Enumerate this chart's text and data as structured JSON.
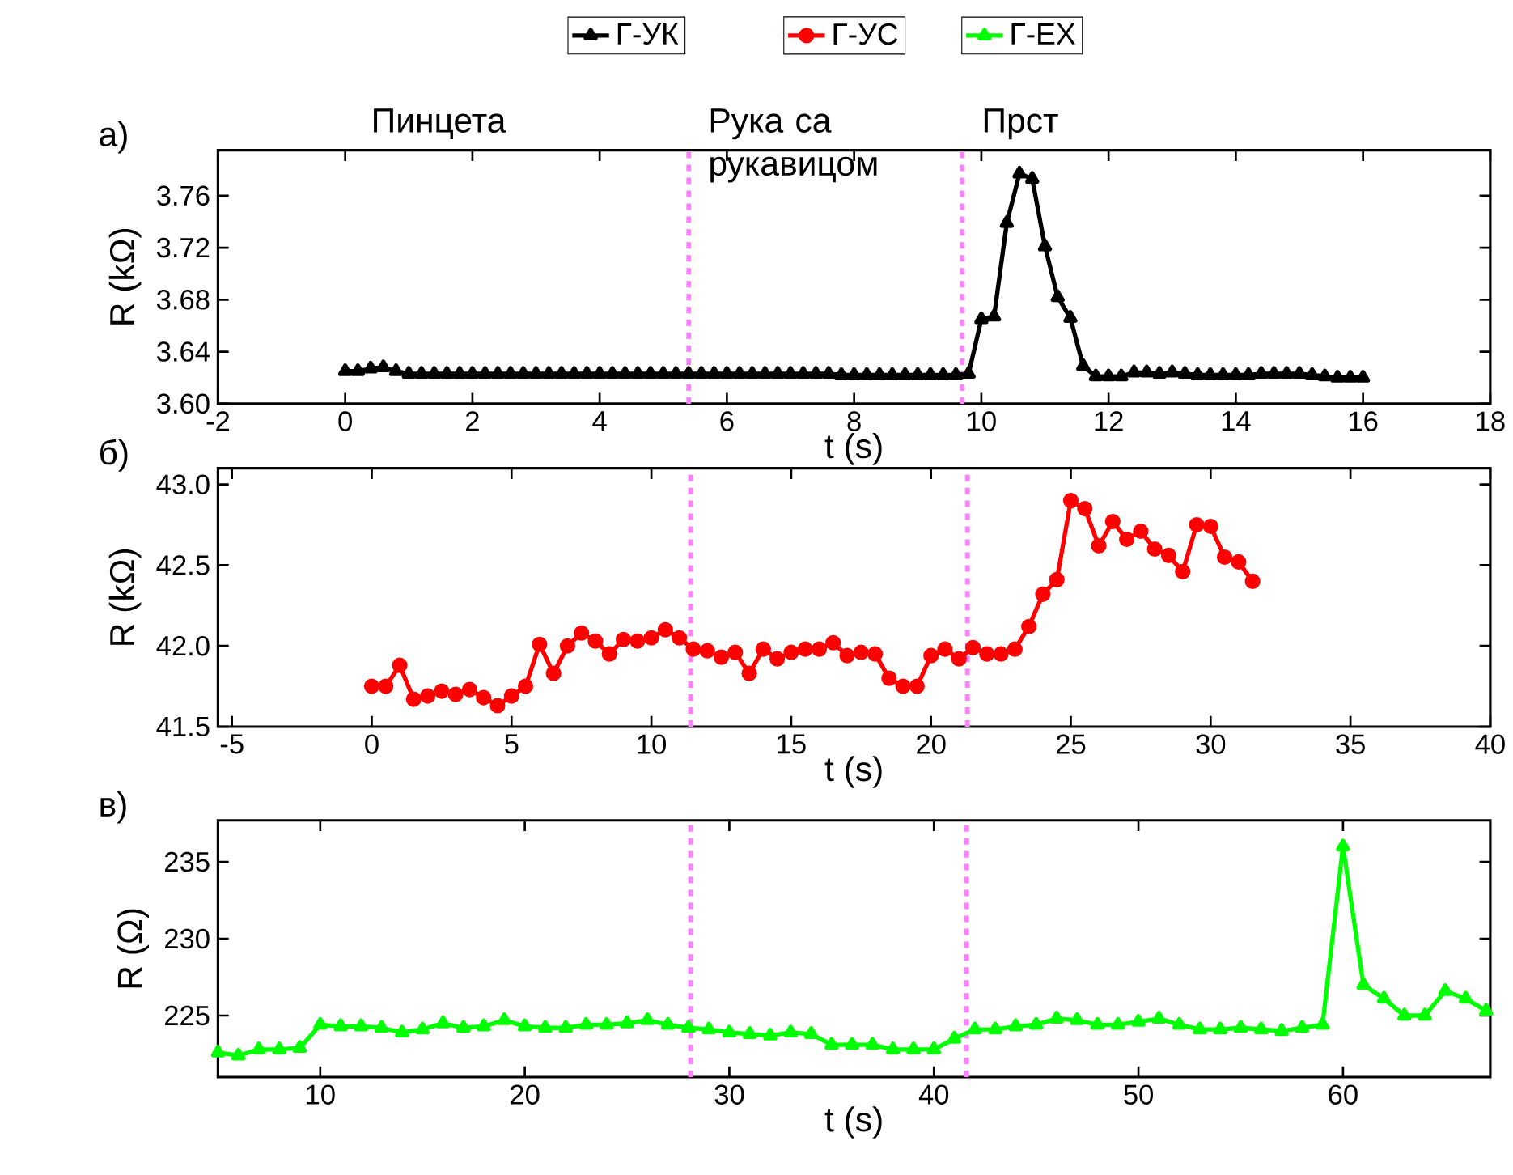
{
  "chart_data": [
    {
      "type": "line",
      "title": "а)",
      "xlabel": "t (s)",
      "ylabel": "R (kΩ)",
      "legend": "top",
      "marker": "triangle",
      "annotations": [
        "Пинцета",
        "Рука са рукавицом",
        "Прст"
      ],
      "xlim": [
        -2,
        18
      ],
      "xticks": [
        -2,
        0,
        2,
        4,
        6,
        8,
        10,
        12,
        14,
        16,
        18
      ],
      "ylim": [
        3.6,
        3.795
      ],
      "yticks": [
        {
          "value": 3.6,
          "label": "3.60"
        },
        {
          "value": 3.64,
          "label": "3.64"
        },
        {
          "value": 3.68,
          "label": "3.68"
        },
        {
          "value": 3.72,
          "label": "3.72"
        },
        {
          "value": 3.76,
          "label": "3.76"
        }
      ],
      "ref_lines": [
        {
          "axis": "x",
          "value": 5.4,
          "color": "#ff80ff",
          "line_style": "dotted"
        },
        {
          "axis": "x",
          "value": 9.7,
          "color": "#ff80ff",
          "line_style": "dotted"
        }
      ],
      "series": [
        {
          "name": "Г-УК",
          "color": "#000000",
          "x": [
            0,
            0.2,
            0.4,
            0.6,
            0.8,
            1.0,
            1.2,
            1.4,
            1.6,
            1.8,
            2.0,
            2.2,
            2.4,
            2.6,
            2.8,
            3.0,
            3.2,
            3.4,
            3.6,
            3.8,
            4.0,
            4.2,
            4.4,
            4.6,
            4.8,
            5.0,
            5.2,
            5.4,
            5.6,
            5.8,
            6.0,
            6.2,
            6.4,
            6.6,
            6.8,
            7.0,
            7.2,
            7.4,
            7.6,
            7.8,
            8.0,
            8.2,
            8.4,
            8.6,
            8.8,
            9.0,
            9.2,
            9.4,
            9.6,
            9.8,
            10.0,
            10.2,
            10.4,
            10.6,
            10.8,
            11.0,
            11.2,
            11.4,
            11.6,
            11.8,
            12.0,
            12.2,
            12.4,
            12.6,
            12.8,
            13.0,
            13.2,
            13.4,
            13.6,
            13.8,
            14.0,
            14.2,
            14.4,
            14.6,
            14.8,
            15.0,
            15.2,
            15.4,
            15.6,
            15.8,
            16.0
          ],
          "values": [
            3.625,
            3.625,
            3.627,
            3.628,
            3.625,
            3.623,
            3.623,
            3.623,
            3.623,
            3.623,
            3.623,
            3.623,
            3.623,
            3.623,
            3.623,
            3.623,
            3.623,
            3.623,
            3.623,
            3.623,
            3.623,
            3.623,
            3.623,
            3.623,
            3.623,
            3.623,
            3.623,
            3.623,
            3.623,
            3.623,
            3.623,
            3.623,
            3.623,
            3.623,
            3.623,
            3.623,
            3.623,
            3.623,
            3.623,
            3.622,
            3.622,
            3.622,
            3.622,
            3.622,
            3.622,
            3.622,
            3.622,
            3.622,
            3.622,
            3.623,
            3.665,
            3.667,
            3.739,
            3.777,
            3.773,
            3.721,
            3.682,
            3.666,
            3.629,
            3.621,
            3.621,
            3.621,
            3.624,
            3.624,
            3.623,
            3.624,
            3.623,
            3.622,
            3.622,
            3.622,
            3.622,
            3.622,
            3.623,
            3.623,
            3.623,
            3.623,
            3.622,
            3.621,
            3.62,
            3.62,
            3.62
          ]
        }
      ]
    },
    {
      "type": "line",
      "title": "б)",
      "xlabel": "t (s)",
      "ylabel": "R (kΩ)",
      "legend": "top",
      "marker": "circle",
      "xlim": [
        -5.5,
        40
      ],
      "xticks": [
        -5,
        0,
        5,
        10,
        15,
        20,
        25,
        30,
        35,
        40
      ],
      "ylim": [
        41.5,
        43.1
      ],
      "yticks": [
        41.5,
        {
          "value": 42,
          "label": "42.0"
        },
        42.5,
        {
          "value": 43,
          "label": "43.0"
        }
      ],
      "ref_lines": [
        {
          "axis": "x",
          "value": 11.4,
          "color": "#ff80ff",
          "line_style": "dotted"
        },
        {
          "axis": "x",
          "value": 21.3,
          "color": "#ff80ff",
          "line_style": "dotted"
        }
      ],
      "series": [
        {
          "name": "Г-УС",
          "color": "#ff0000",
          "x": [
            0,
            0.5,
            1,
            1.5,
            2,
            2.5,
            3,
            3.5,
            4,
            4.5,
            5,
            5.5,
            6,
            6.5,
            7,
            7.5,
            8,
            8.5,
            9,
            9.5,
            10,
            10.5,
            11,
            11.5,
            12,
            12.5,
            13,
            13.5,
            14,
            14.5,
            15,
            15.5,
            16,
            16.5,
            17,
            17.5,
            18,
            18.5,
            19,
            19.5,
            20,
            20.5,
            21,
            21.5,
            22,
            22.5,
            23,
            23.5,
            24,
            24.5,
            25,
            25.5,
            26,
            26.5,
            27,
            27.5,
            28,
            28.5,
            29,
            29.5,
            30,
            30.5,
            31,
            31.5
          ],
          "values": [
            41.75,
            41.75,
            41.88,
            41.67,
            41.69,
            41.72,
            41.7,
            41.73,
            41.68,
            41.63,
            41.69,
            41.75,
            42.01,
            41.83,
            42.0,
            42.08,
            42.03,
            41.95,
            42.04,
            42.03,
            42.05,
            42.1,
            42.05,
            41.98,
            41.97,
            41.93,
            41.96,
            41.83,
            41.98,
            41.92,
            41.96,
            41.98,
            41.98,
            42.02,
            41.94,
            41.96,
            41.95,
            41.8,
            41.75,
            41.75,
            41.94,
            41.98,
            41.92,
            41.99,
            41.95,
            41.95,
            41.98,
            42.12,
            42.32,
            42.41,
            42.9,
            42.85,
            42.62,
            42.77,
            42.66,
            42.71,
            42.6,
            42.56,
            42.46,
            42.75,
            42.74,
            42.55,
            42.52,
            42.4
          ]
        }
      ]
    },
    {
      "type": "line",
      "title": "в)",
      "xlabel": "t (s)",
      "ylabel": "R (Ω)",
      "legend": "top",
      "marker": "triangle",
      "xlim": [
        5,
        67.2
      ],
      "xticks": [
        10,
        20,
        30,
        40,
        50,
        60
      ],
      "ylim": [
        221,
        237.7
      ],
      "yticks": [
        225,
        230,
        235
      ],
      "ref_lines": [
        {
          "axis": "x",
          "value": 28.1,
          "color": "#ff80ff",
          "line_style": "dotted"
        },
        {
          "axis": "x",
          "value": 41.6,
          "color": "#ff80ff",
          "line_style": "dotted"
        }
      ],
      "series": [
        {
          "name": "Г-ЕХ",
          "color": "#00ff00",
          "x": [
            5,
            6,
            7,
            8,
            9,
            10,
            11,
            12,
            13,
            14,
            15,
            16,
            17,
            18,
            19,
            20,
            21,
            22,
            23,
            24,
            25,
            26,
            27,
            28,
            29,
            30,
            31,
            32,
            33,
            34,
            35,
            36,
            37,
            38,
            39,
            40,
            41,
            42,
            43,
            44,
            45,
            46,
            47,
            48,
            49,
            50,
            51,
            52,
            53,
            54,
            55,
            56,
            57,
            58,
            59,
            60,
            61,
            62,
            63,
            64,
            65,
            66,
            67
          ],
          "values": [
            222.6,
            222.4,
            222.8,
            222.8,
            222.9,
            224.4,
            224.3,
            224.3,
            224.2,
            223.9,
            224.1,
            224.5,
            224.2,
            224.3,
            224.7,
            224.3,
            224.2,
            224.2,
            224.4,
            224.4,
            224.5,
            224.7,
            224.4,
            224.2,
            224.1,
            223.9,
            223.8,
            223.7,
            223.9,
            223.8,
            223.1,
            223.1,
            223.1,
            222.8,
            222.8,
            222.8,
            223.5,
            224.1,
            224.1,
            224.3,
            224.4,
            224.8,
            224.7,
            224.4,
            224.4,
            224.6,
            224.8,
            224.4,
            224.1,
            224.1,
            224.2,
            224.1,
            224.0,
            224.2,
            224.4,
            236.0,
            227.0,
            226.1,
            225.0,
            225.0,
            226.6,
            226.1,
            225.3
          ]
        }
      ]
    }
  ]
}
